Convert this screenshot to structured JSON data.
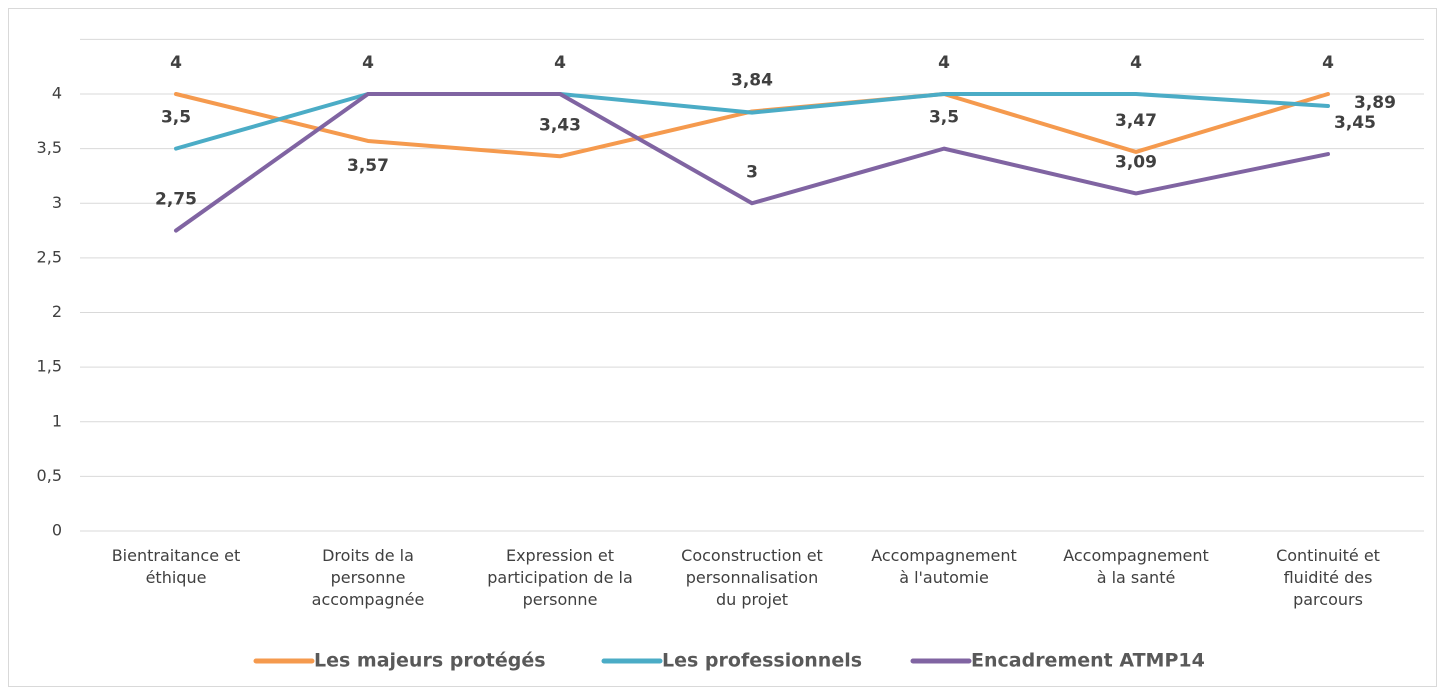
{
  "chart_data": {
    "type": "line",
    "categories": [
      [
        "Bientraitance et",
        "éthique"
      ],
      [
        "Droits de la",
        "personne",
        "accompagnée"
      ],
      [
        "Expression et",
        "participation de la",
        "personne"
      ],
      [
        "Coconstruction et",
        "personnalisation",
        "du projet"
      ],
      [
        "Accompagnement",
        "à l'automie"
      ],
      [
        "Accompagnement",
        "à la santé"
      ],
      [
        "Continuité et",
        "fluidité des",
        "parcours"
      ]
    ],
    "series": [
      {
        "name": "Les majeurs protégés",
        "color": "#f59a4e",
        "values": [
          4,
          3.57,
          3.43,
          3.84,
          4,
          3.47,
          4
        ],
        "value_labels": [
          "4",
          "3,57",
          "3,43",
          "3,84",
          null,
          "3,47",
          "4"
        ]
      },
      {
        "name": "Les professionnels",
        "color": "#4bacc6",
        "values": [
          3.5,
          4,
          4,
          3.83,
          4,
          4,
          3.89
        ],
        "value_labels": [
          "3,5",
          "4",
          "4",
          null,
          "4",
          "4",
          "3,89"
        ]
      },
      {
        "name": "Encadrement ATMP14",
        "color": "#8064a2",
        "values": [
          2.75,
          4,
          4,
          3,
          3.5,
          3.09,
          3.45
        ],
        "value_labels": [
          "2,75",
          null,
          null,
          "3",
          "3,5",
          "3,09",
          "3,45"
        ]
      }
    ],
    "ylim": [
      0,
      4.5
    ],
    "yticks": [
      0,
      {
        "value": 0.5,
        "label": "0,5"
      },
      1,
      {
        "value": 1.5,
        "label": "1,5"
      },
      2,
      {
        "value": 2.5,
        "label": "2,5"
      },
      3,
      {
        "value": 3.5,
        "label": "3,5"
      },
      4
    ],
    "grid": true,
    "legend": "bottom"
  }
}
